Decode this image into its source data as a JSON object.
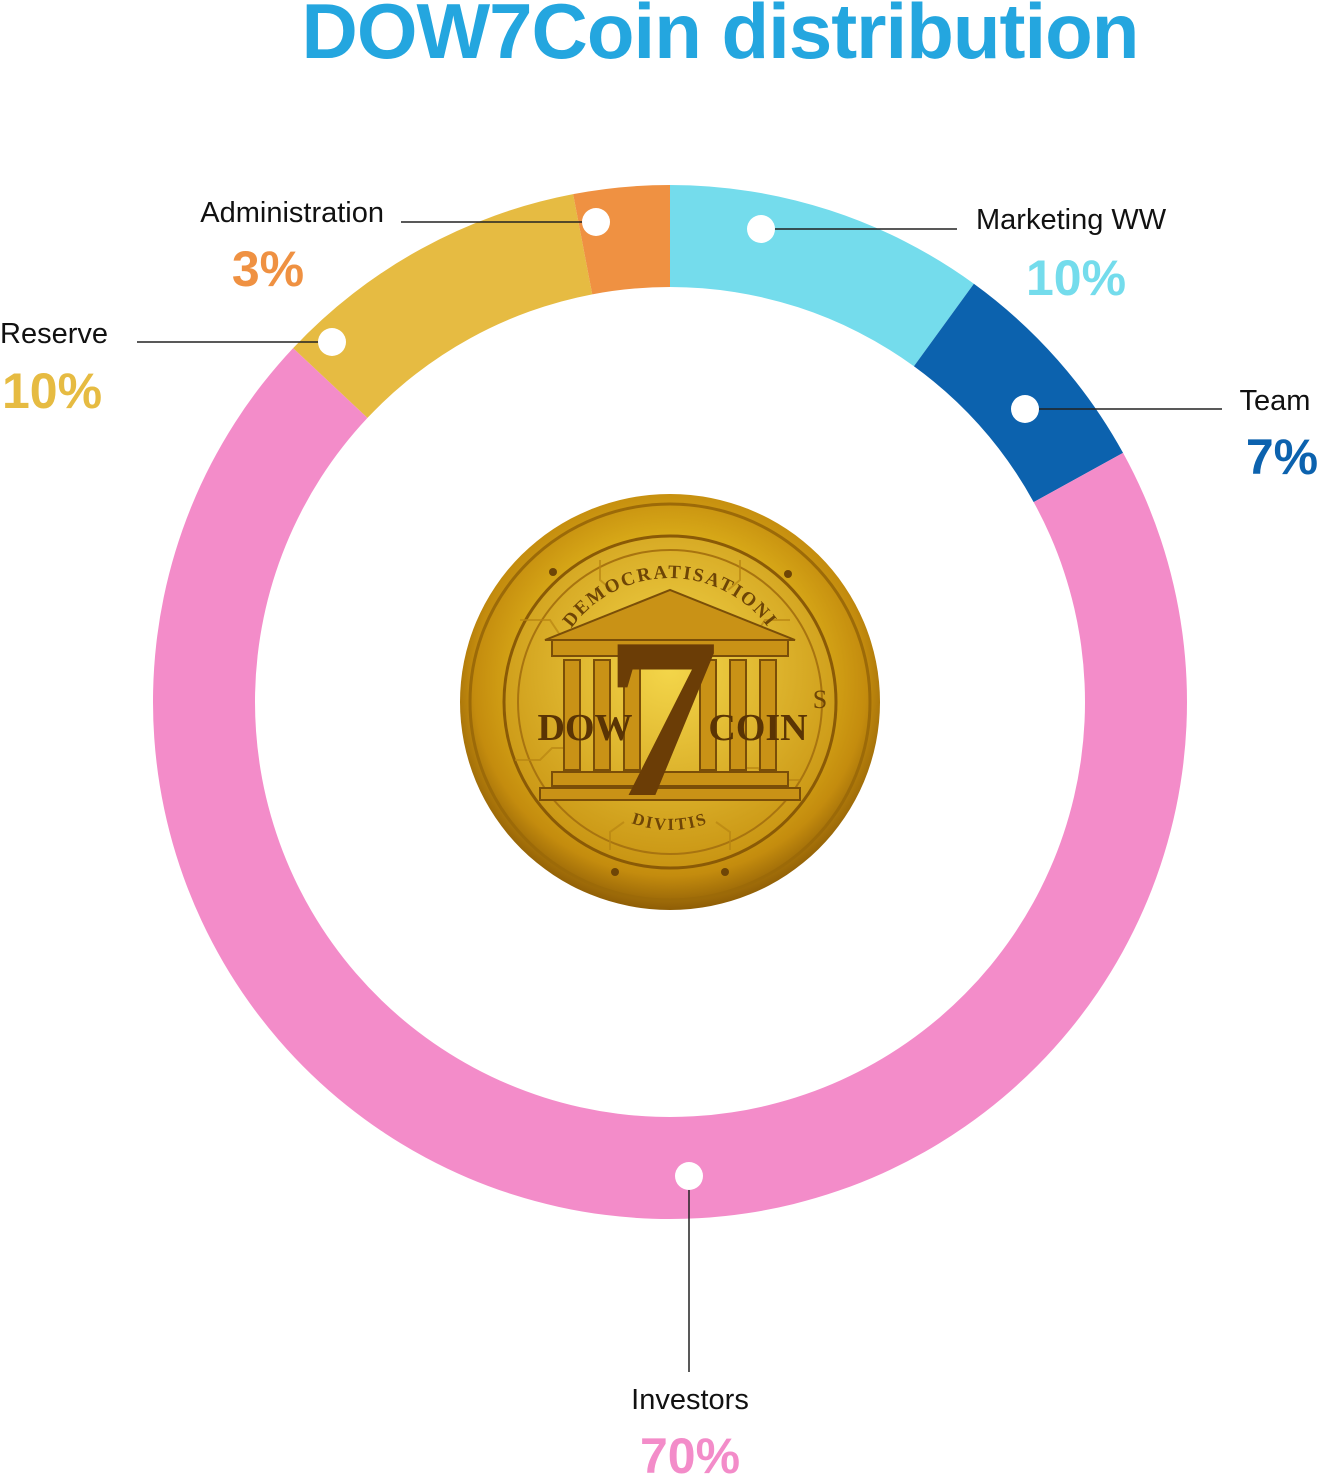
{
  "title": "DOW7Coin distribution",
  "title_color": "#24a6df",
  "chart_data": {
    "type": "pie",
    "style": "donut",
    "center_image": "dow7coin-gold-coin",
    "slices": [
      {
        "label": "Marketing WW",
        "percent_label": "10%",
        "value": 10,
        "color": "#74dcec"
      },
      {
        "label": "Team",
        "percent_label": "7%",
        "value": 7,
        "color": "#0c62ae"
      },
      {
        "label": "Investors",
        "percent_label": "70%",
        "value": 70,
        "color": "#f38cc9"
      },
      {
        "label": "Reserve",
        "percent_label": "10%",
        "value": 10,
        "color": "#e6bb42"
      },
      {
        "label": "Administration",
        "percent_label": "3%",
        "value": 3,
        "color": "#ef9142"
      }
    ]
  },
  "coin": {
    "top_text": "DEMOCRATISATIONI",
    "bottom_text": "DIVITIS",
    "left_text": "DOW",
    "center_digit": "7",
    "right_text": "COIN",
    "side_mark": "S"
  }
}
